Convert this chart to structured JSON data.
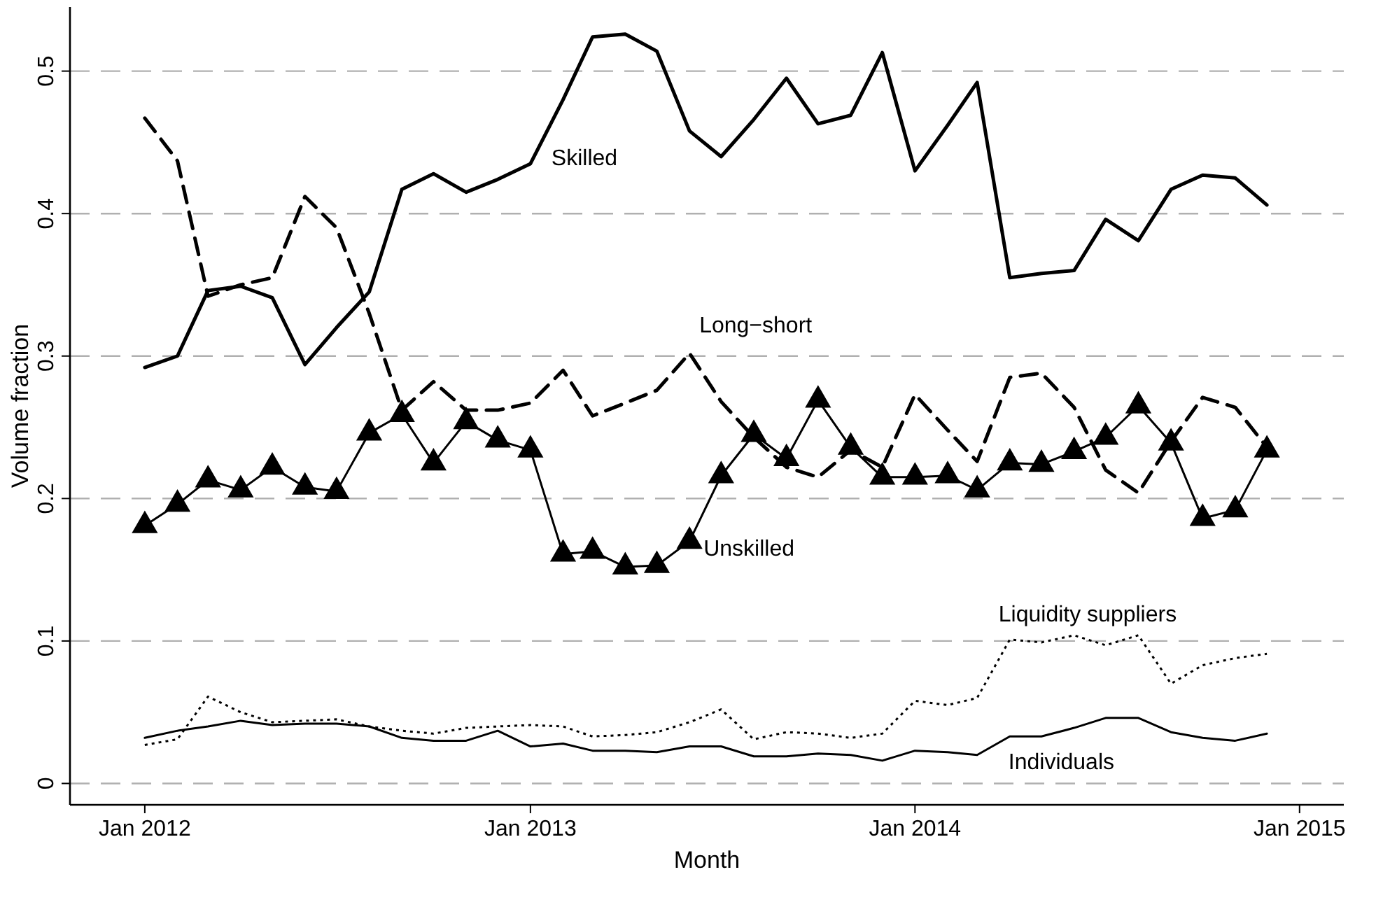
{
  "chart_data": {
    "type": "line",
    "xlabel": "Month",
    "ylabel": "Volume fraction",
    "x": [
      "2012-01",
      "2012-02",
      "2012-03",
      "2012-04",
      "2012-05",
      "2012-06",
      "2012-07",
      "2012-08",
      "2012-09",
      "2012-10",
      "2012-11",
      "2012-12",
      "2013-01",
      "2013-02",
      "2013-03",
      "2013-04",
      "2013-05",
      "2013-06",
      "2013-07",
      "2013-08",
      "2013-09",
      "2013-10",
      "2013-11",
      "2013-12",
      "2014-01",
      "2014-02",
      "2014-03",
      "2014-04",
      "2014-05",
      "2014-06",
      "2014-07",
      "2014-08",
      "2014-09",
      "2014-10",
      "2014-11",
      "2014-12"
    ],
    "xlim": [
      "2011-10-22",
      "2015-02-12"
    ],
    "xticks": [
      {
        "value": "2012-01",
        "label": "Jan 2012"
      },
      {
        "value": "2013-01",
        "label": "Jan 2013"
      },
      {
        "value": "2014-01",
        "label": "Jan 2014"
      },
      {
        "value": "2015-01",
        "label": "Jan 2015"
      }
    ],
    "ylim": [
      -0.015,
      0.545
    ],
    "yticks": [
      0,
      0.1,
      0.2,
      0.3,
      0.4,
      0.5
    ],
    "grid": "y",
    "series": [
      {
        "name": "Skilled",
        "color": "#000000",
        "line_style": "solid",
        "marker": "none",
        "values": [
          0.292,
          0.3,
          0.346,
          0.349,
          0.341,
          0.294,
          0.32,
          0.345,
          0.417,
          0.428,
          0.415,
          0.424,
          0.435,
          0.48,
          0.524,
          0.526,
          0.514,
          0.458,
          0.44,
          0.466,
          0.495,
          0.463,
          0.469,
          0.513,
          0.43,
          0.462,
          0.492,
          0.355,
          0.358,
          0.36,
          0.396,
          0.381,
          0.417,
          0.427,
          0.425,
          0.406
        ]
      },
      {
        "name": "Long−short",
        "color": "#000000",
        "line_style": "dashed",
        "marker": "none",
        "values": [
          0.467,
          0.437,
          0.342,
          0.35,
          0.355,
          0.412,
          0.39,
          0.33,
          0.262,
          0.282,
          0.262,
          0.262,
          0.267,
          0.29,
          0.258,
          0.267,
          0.276,
          0.302,
          0.268,
          0.243,
          0.222,
          0.215,
          0.234,
          0.222,
          0.273,
          0.248,
          0.226,
          0.285,
          0.288,
          0.264,
          0.22,
          0.204,
          0.24,
          0.271,
          0.264,
          0.236
        ]
      },
      {
        "name": "Unskilled",
        "color": "#000000",
        "line_style": "solid",
        "marker": "triangle",
        "values": [
          0.181,
          0.196,
          0.213,
          0.206,
          0.222,
          0.208,
          0.205,
          0.246,
          0.259,
          0.225,
          0.254,
          0.241,
          0.234,
          0.161,
          0.163,
          0.152,
          0.153,
          0.17,
          0.216,
          0.245,
          0.228,
          0.269,
          0.236,
          0.215,
          0.215,
          0.216,
          0.206,
          0.225,
          0.224,
          0.233,
          0.243,
          0.265,
          0.239,
          0.186,
          0.192,
          0.234
        ]
      },
      {
        "name": "Liquidity suppliers",
        "color": "#000000",
        "line_style": "dotted",
        "marker": "none",
        "values": [
          0.027,
          0.031,
          0.061,
          0.05,
          0.043,
          0.044,
          0.045,
          0.04,
          0.037,
          0.035,
          0.039,
          0.04,
          0.041,
          0.04,
          0.033,
          0.034,
          0.036,
          0.043,
          0.052,
          0.031,
          0.036,
          0.035,
          0.032,
          0.035,
          0.058,
          0.055,
          0.06,
          0.101,
          0.099,
          0.104,
          0.097,
          0.104,
          0.07,
          0.083,
          0.088,
          0.091
        ]
      },
      {
        "name": "Individuals",
        "color": "#000000",
        "line_style": "solid",
        "marker": "none",
        "values": [
          0.032,
          0.037,
          0.04,
          0.044,
          0.041,
          0.042,
          0.042,
          0.04,
          0.032,
          0.03,
          0.03,
          0.037,
          0.026,
          0.028,
          0.023,
          0.023,
          0.022,
          0.026,
          0.026,
          0.019,
          0.019,
          0.021,
          0.02,
          0.016,
          0.023,
          0.022,
          0.02,
          0.033,
          0.033,
          0.039,
          0.046,
          0.046,
          0.036,
          0.032,
          0.03,
          0.035
        ]
      }
    ]
  }
}
